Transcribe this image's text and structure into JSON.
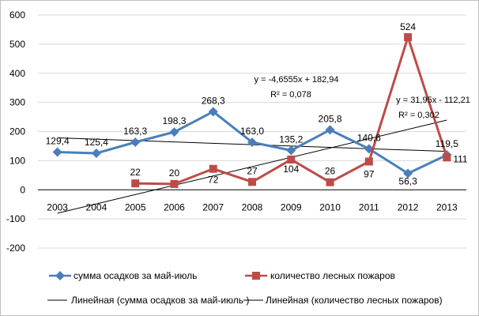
{
  "chart_data": {
    "type": "line",
    "categories": [
      "2003",
      "2004",
      "2005",
      "2006",
      "2007",
      "2008",
      "2009",
      "2010",
      "2011",
      "2012",
      "2013"
    ],
    "ylim": [
      -200,
      600
    ],
    "yticks": [
      -200,
      -100,
      0,
      100,
      200,
      300,
      400,
      500,
      600
    ],
    "grid": "horizontal",
    "legend_position": "bottom",
    "series": [
      {
        "name": "сумма осадков за май-июль",
        "color": "#4a7ebb",
        "marker": "diamond",
        "values": [
          129.4,
          125.4,
          163.3,
          198.3,
          268.3,
          163.0,
          135.2,
          205.8,
          140.6,
          56.3,
          119.5
        ],
        "labels": [
          "129,4",
          "125,4",
          "163,3",
          "198,3",
          "268,3",
          "163,0",
          "135,2",
          "205,8",
          "140,6",
          "56,3",
          "119,5"
        ]
      },
      {
        "name": "количество лесных пожаров",
        "color": "#be4b48",
        "marker": "square",
        "values": [
          null,
          null,
          22,
          20,
          72,
          27,
          104,
          26,
          97,
          524,
          111
        ],
        "labels": [
          "",
          "",
          "22",
          "20",
          "72",
          "27",
          "104",
          "26",
          "97",
          "524",
          "111"
        ]
      }
    ],
    "trendlines": [
      {
        "name": "Линейная (сумма осадков за май-июль )",
        "slope": -4.6555,
        "intercept": 182.94,
        "equation": "y = -4,6555x + 182,94",
        "r2": "R² = 0,078"
      },
      {
        "name": "Линейная (количество лесных пожаров)",
        "slope": 31.95,
        "intercept": -112.21,
        "equation": "y = 31,95x - 112,21",
        "r2": "R² = 0,302"
      }
    ]
  }
}
